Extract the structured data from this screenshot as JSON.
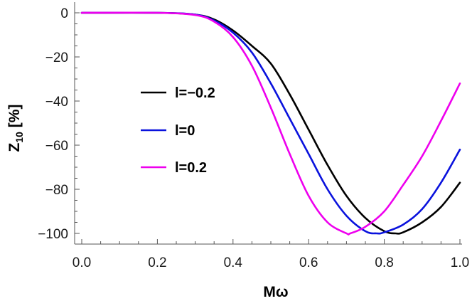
{
  "chart_data": {
    "type": "line",
    "title": "",
    "xlabel": "Mω",
    "ylabel": "Z",
    "ylabel_subscript": "10",
    "ylabel_suffix": " [%]",
    "xlim": [
      0,
      1
    ],
    "ylim": [
      -105,
      5
    ],
    "xticks": [
      0.0,
      0.2,
      0.4,
      0.6,
      0.8,
      1.0
    ],
    "xtick_labels": [
      "0.0",
      "0.2",
      "0.4",
      "0.6",
      "0.8",
      "1.0"
    ],
    "yticks": [
      0,
      -20,
      -40,
      -60,
      -80,
      -100
    ],
    "ytick_labels": [
      "0",
      "−20",
      "−40",
      "−60",
      "−80",
      "−100"
    ],
    "grid": false,
    "legend_position": "center-left",
    "series": [
      {
        "name": "l=−0.2",
        "color": "#000000",
        "x": [
          0.0,
          0.2,
          0.3,
          0.35,
          0.4,
          0.45,
          0.5,
          0.55,
          0.6,
          0.65,
          0.7,
          0.75,
          0.8,
          0.83,
          0.85,
          0.9,
          0.95,
          1.0
        ],
        "y": [
          0,
          0,
          -0.8,
          -3,
          -8,
          -15,
          -23,
          -37,
          -53,
          -69,
          -83,
          -93,
          -99,
          -100,
          -99.5,
          -95,
          -88,
          -77
        ]
      },
      {
        "name": "l=0",
        "color": "#0a12dd",
        "x": [
          0.0,
          0.2,
          0.3,
          0.35,
          0.4,
          0.45,
          0.5,
          0.55,
          0.6,
          0.65,
          0.7,
          0.75,
          0.78,
          0.8,
          0.85,
          0.9,
          0.95,
          1.0
        ],
        "y": [
          0,
          0,
          -0.8,
          -3.5,
          -9,
          -18,
          -32,
          -48,
          -64,
          -80,
          -92,
          -99,
          -100,
          -99.5,
          -96,
          -89,
          -77,
          -62
        ]
      },
      {
        "name": "l=0.2",
        "color": "#ee00ee",
        "x": [
          0.0,
          0.2,
          0.3,
          0.35,
          0.4,
          0.45,
          0.5,
          0.55,
          0.6,
          0.65,
          0.7,
          0.71,
          0.75,
          0.8,
          0.85,
          0.9,
          0.95,
          1.0
        ],
        "y": [
          0,
          0,
          -1,
          -4,
          -11,
          -24,
          -43,
          -64,
          -83,
          -95,
          -100,
          -100,
          -97,
          -90,
          -78,
          -65,
          -49,
          -32
        ]
      }
    ]
  }
}
